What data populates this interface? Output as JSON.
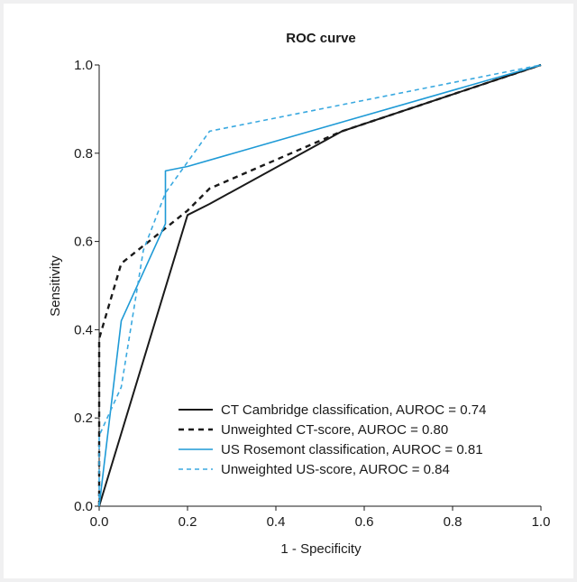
{
  "chart_data": {
    "type": "line",
    "title": "ROC curve",
    "xlabel": "1 - Specificity",
    "ylabel": "Sensitivity",
    "xlim": [
      0,
      1
    ],
    "ylim": [
      0,
      1
    ],
    "x_ticks": [
      "0.0",
      "0.2",
      "0.4",
      "0.6",
      "0.8",
      "1.0"
    ],
    "y_ticks": [
      "0.0",
      "0.2",
      "0.4",
      "0.6",
      "0.8",
      "1.0"
    ],
    "grid": false,
    "legend_position": "bottom-right",
    "series": [
      {
        "name": "CT Cambridge classification, AUROC = 0.74",
        "color": "#1a1a1a",
        "style": "solid",
        "points": [
          [
            0,
            0
          ],
          [
            0.2,
            0.66
          ],
          [
            0.25,
            0.685
          ],
          [
            0.55,
            0.85
          ],
          [
            1.0,
            1.0
          ]
        ]
      },
      {
        "name": "Unweighted CT-score, AUROC = 0.80",
        "color": "#1a1a1a",
        "style": "dashed",
        "points": [
          [
            0,
            0
          ],
          [
            0,
            0.38
          ],
          [
            0.05,
            0.55
          ],
          [
            0.15,
            0.63
          ],
          [
            0.2,
            0.67
          ],
          [
            0.25,
            0.72
          ],
          [
            0.55,
            0.85
          ],
          [
            1.0,
            1.0
          ]
        ]
      },
      {
        "name": "US Rosemont classification, AUROC = 0.81",
        "color": "#1e9ad6",
        "style": "solid",
        "points": [
          [
            0,
            0
          ],
          [
            0.05,
            0.42
          ],
          [
            0.15,
            0.64
          ],
          [
            0.15,
            0.76
          ],
          [
            0.2,
            0.77
          ],
          [
            1.0,
            1.0
          ]
        ]
      },
      {
        "name": "Unweighted US-score, AUROC = 0.84",
        "color": "#3aa9e0",
        "style": "dashed",
        "points": [
          [
            0,
            0
          ],
          [
            0,
            0.16
          ],
          [
            0.05,
            0.27
          ],
          [
            0.1,
            0.58
          ],
          [
            0.15,
            0.71
          ],
          [
            0.25,
            0.85
          ],
          [
            1.0,
            1.0
          ]
        ]
      }
    ]
  }
}
